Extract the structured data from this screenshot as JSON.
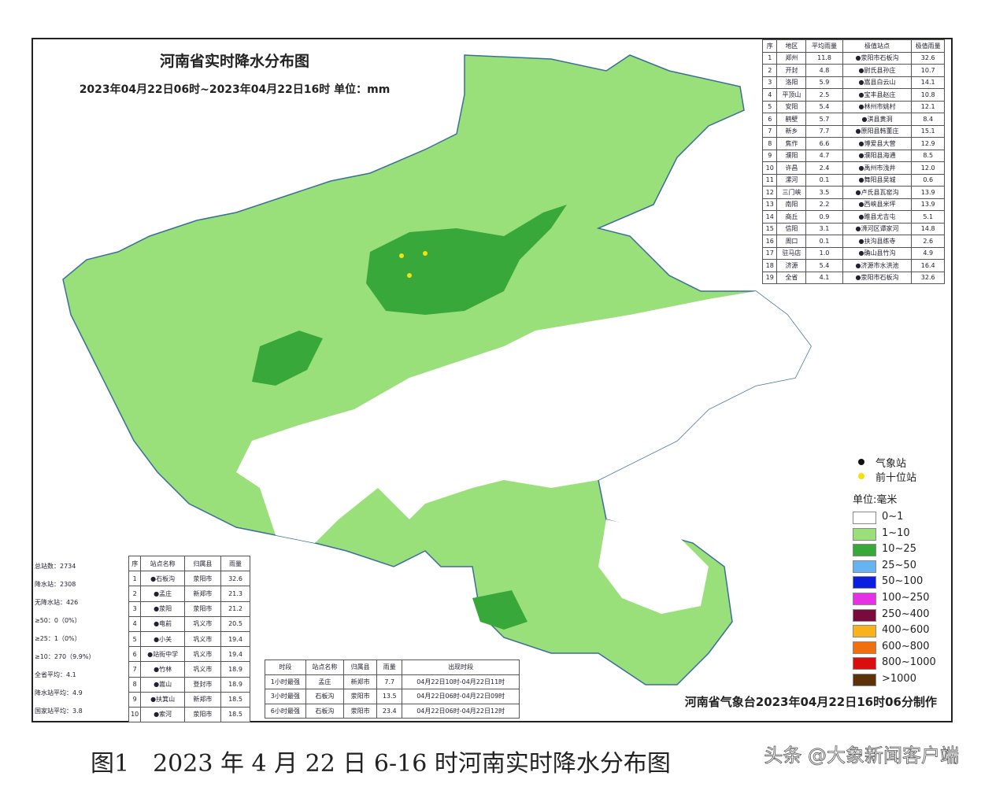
{
  "header": {
    "title": "河南省实时降水分布图",
    "subtitle": "2023年04月22日06时~2023年04月22日16时 单位：mm"
  },
  "city_table": {
    "headers": [
      "序",
      "地区",
      "平均雨量",
      "极值站点",
      "极值雨量"
    ],
    "rows": [
      [
        "1",
        "郑州",
        "11.8",
        "●荥阳市石板沟",
        "32.6"
      ],
      [
        "2",
        "开封",
        "4.8",
        "●尉氏县孙庄",
        "10.7"
      ],
      [
        "3",
        "洛阳",
        "5.9",
        "●嵩县白云山",
        "14.1"
      ],
      [
        "4",
        "平顶山",
        "2.5",
        "●宝丰县赵庄",
        "10.8"
      ],
      [
        "5",
        "安阳",
        "5.4",
        "●林州市姚村",
        "12.1"
      ],
      [
        "6",
        "鹤壁",
        "5.7",
        "●淇县黄洞",
        "8.4"
      ],
      [
        "7",
        "新乡",
        "7.7",
        "●原阳县韩董庄",
        "15.1"
      ],
      [
        "8",
        "焦作",
        "6.6",
        "●博爱县大营",
        "12.9"
      ],
      [
        "9",
        "濮阳",
        "4.7",
        "●濮阳县海通",
        "8.5"
      ],
      [
        "10",
        "许昌",
        "2.4",
        "●禹州市浅井",
        "12.0"
      ],
      [
        "11",
        "漯河",
        "0.1",
        "●舞阳县吴城",
        "0.6"
      ],
      [
        "12",
        "三门峡",
        "3.5",
        "●卢氏县瓦窑沟",
        "13.9"
      ],
      [
        "13",
        "南阳",
        "2.2",
        "●西峡县米坪",
        "13.9"
      ],
      [
        "14",
        "商丘",
        "0.9",
        "●睢县尤吉屯",
        "5.1"
      ],
      [
        "15",
        "信阳",
        "3.1",
        "●浉河区谭家河",
        "14.8"
      ],
      [
        "16",
        "周口",
        "0.1",
        "●扶沟县练寺",
        "2.6"
      ],
      [
        "17",
        "驻马店",
        "1.0",
        "●确山县竹沟",
        "4.9"
      ],
      [
        "18",
        "济源",
        "5.4",
        "●济源市水洪池",
        "16.4"
      ],
      [
        "19",
        "全省",
        "4.1",
        "●荥阳市石板沟",
        "32.6"
      ]
    ]
  },
  "stats": [
    "总站数：2734",
    "降水站：2308",
    "无降水站：426",
    "≥50：0（0%）",
    "≥25：1（0%）",
    "≥10：270（9.9%）",
    "全省平均：4.1",
    "降水站平均：4.9",
    "国家站平均：3.8"
  ],
  "top_table": {
    "headers": [
      "序",
      "站点名称",
      "归属县",
      "雨量"
    ],
    "rows": [
      [
        "1",
        "●石板沟",
        "荥阳市",
        "32.6"
      ],
      [
        "2",
        "●孟庄",
        "新郑市",
        "21.3"
      ],
      [
        "3",
        "●荥阳",
        "荥阳市",
        "21.2"
      ],
      [
        "4",
        "●电前",
        "巩义市",
        "20.5"
      ],
      [
        "5",
        "●小关",
        "巩义市",
        "19.4"
      ],
      [
        "6",
        "●站街中学",
        "巩义市",
        "19.4"
      ],
      [
        "7",
        "●竹林",
        "巩义市",
        "18.9"
      ],
      [
        "8",
        "●嵩山",
        "登封市",
        "18.9"
      ],
      [
        "9",
        "●扶箕山",
        "新郑市",
        "18.5"
      ],
      [
        "10",
        "●索河",
        "荥阳市",
        "18.5"
      ]
    ]
  },
  "period_table": {
    "headers": [
      "时段",
      "站点名称",
      "归属县",
      "雨量",
      "出现时段"
    ],
    "rows": [
      [
        "1小时最强",
        "孟庄",
        "新郑市",
        "7.7",
        "04月22日10时-04月22日11时"
      ],
      [
        "3小时最强",
        "石板沟",
        "荥阳市",
        "13.5",
        "04月22日06时-04月22日09时"
      ],
      [
        "6小时最强",
        "石板沟",
        "荥阳市",
        "23.4",
        "04月22日06时-04月22日12时"
      ]
    ]
  },
  "legend": {
    "station": "气象站",
    "top_station": "前十位站",
    "unit": "单位:毫米",
    "items": [
      {
        "label": "0~1",
        "color": "#ffffff"
      },
      {
        "label": "1~10",
        "color": "#99e07a"
      },
      {
        "label": "10~25",
        "color": "#38a83a"
      },
      {
        "label": "25~50",
        "color": "#66b3f2"
      },
      {
        "label": "50~100",
        "color": "#0b1ee0"
      },
      {
        "label": "100~250",
        "color": "#e530e5"
      },
      {
        "label": "250~400",
        "color": "#7a0a3e"
      },
      {
        "label": "400~600",
        "color": "#f7b21c"
      },
      {
        "label": "600~800",
        "color": "#f07010"
      },
      {
        "label": "800~1000",
        "color": "#d90e0e"
      },
      {
        "label": ">1000",
        "color": "#5e3208"
      }
    ]
  },
  "credit": "河南省气象台2023年04月22日16时06分制作",
  "caption": "图1　2023 年 4 月 22 日 6-16 时河南实时降水分布图",
  "watermark": "头条 @大象新闻客户端"
}
